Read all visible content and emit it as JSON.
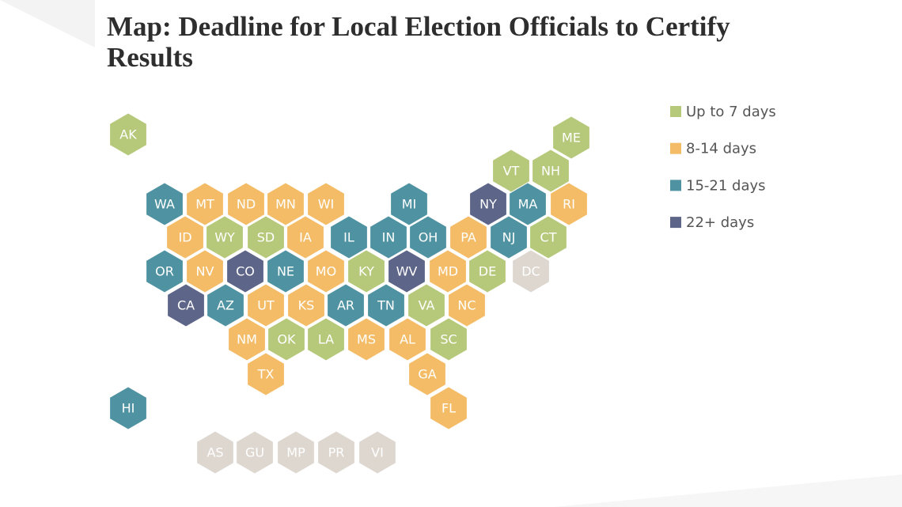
{
  "title": "Map: Deadline for Local Election Officials to Certify Results",
  "legend": [
    {
      "label": "Up to 7 days",
      "color": "#b6c97a"
    },
    {
      "label": "8-14 days",
      "color": "#f4bc66"
    },
    {
      "label": "15-21 days",
      "color": "#4f93a2"
    },
    {
      "label": "22+ days",
      "color": "#5d6588"
    }
  ],
  "states": [
    {
      "label": "AK",
      "color": "#b6c97a"
    },
    {
      "label": "ME",
      "color": "#b6c97a"
    },
    {
      "label": "VT",
      "color": "#b6c97a"
    },
    {
      "label": "NH",
      "color": "#b6c97a"
    },
    {
      "label": "WA",
      "color": "#4f93a2"
    },
    {
      "label": "MT",
      "color": "#f4bc66"
    },
    {
      "label": "ND",
      "color": "#f4bc66"
    },
    {
      "label": "MN",
      "color": "#f4bc66"
    },
    {
      "label": "WI",
      "color": "#f4bc66"
    },
    {
      "label": "MI",
      "color": "#4f93a2"
    },
    {
      "label": "NY",
      "color": "#5d6588"
    },
    {
      "label": "MA",
      "color": "#4f93a2"
    },
    {
      "label": "RI",
      "color": "#f4bc66"
    },
    {
      "label": "ID",
      "color": "#f4bc66"
    },
    {
      "label": "WY",
      "color": "#b6c97a"
    },
    {
      "label": "SD",
      "color": "#b6c97a"
    },
    {
      "label": "IA",
      "color": "#f4bc66"
    },
    {
      "label": "IL",
      "color": "#4f93a2"
    },
    {
      "label": "IN",
      "color": "#4f93a2"
    },
    {
      "label": "OH",
      "color": "#4f93a2"
    },
    {
      "label": "PA",
      "color": "#f4bc66"
    },
    {
      "label": "NJ",
      "color": "#4f93a2"
    },
    {
      "label": "CT",
      "color": "#b6c97a"
    },
    {
      "label": "OR",
      "color": "#4f93a2"
    },
    {
      "label": "NV",
      "color": "#f4bc66"
    },
    {
      "label": "CO",
      "color": "#5d6588"
    },
    {
      "label": "NE",
      "color": "#4f93a2"
    },
    {
      "label": "MO",
      "color": "#f4bc66"
    },
    {
      "label": "KY",
      "color": "#b6c97a"
    },
    {
      "label": "WV",
      "color": "#5d6588"
    },
    {
      "label": "MD",
      "color": "#f4bc66"
    },
    {
      "label": "DE",
      "color": "#b6c97a"
    },
    {
      "label": "DC",
      "color": "#ddd7d0"
    },
    {
      "label": "CA",
      "color": "#5d6588"
    },
    {
      "label": "AZ",
      "color": "#4f93a2"
    },
    {
      "label": "UT",
      "color": "#f4bc66"
    },
    {
      "label": "KS",
      "color": "#f4bc66"
    },
    {
      "label": "AR",
      "color": "#4f93a2"
    },
    {
      "label": "TN",
      "color": "#4f93a2"
    },
    {
      "label": "VA",
      "color": "#b6c97a"
    },
    {
      "label": "NC",
      "color": "#f4bc66"
    },
    {
      "label": "NM",
      "color": "#f4bc66"
    },
    {
      "label": "OK",
      "color": "#b6c97a"
    },
    {
      "label": "LA",
      "color": "#b6c97a"
    },
    {
      "label": "MS",
      "color": "#f4bc66"
    },
    {
      "label": "AL",
      "color": "#f4bc66"
    },
    {
      "label": "SC",
      "color": "#b6c97a"
    },
    {
      "label": "TX",
      "color": "#f4bc66"
    },
    {
      "label": "GA",
      "color": "#f4bc66"
    },
    {
      "label": "HI",
      "color": "#4f93a2"
    },
    {
      "label": "FL",
      "color": "#f4bc66"
    },
    {
      "label": "AS",
      "color": "#ddd7d0"
    },
    {
      "label": "GU",
      "color": "#ddd7d0"
    },
    {
      "label": "MP",
      "color": "#ddd7d0"
    },
    {
      "label": "PR",
      "color": "#ddd7d0"
    },
    {
      "label": "VI",
      "color": "#ddd7d0"
    }
  ]
}
